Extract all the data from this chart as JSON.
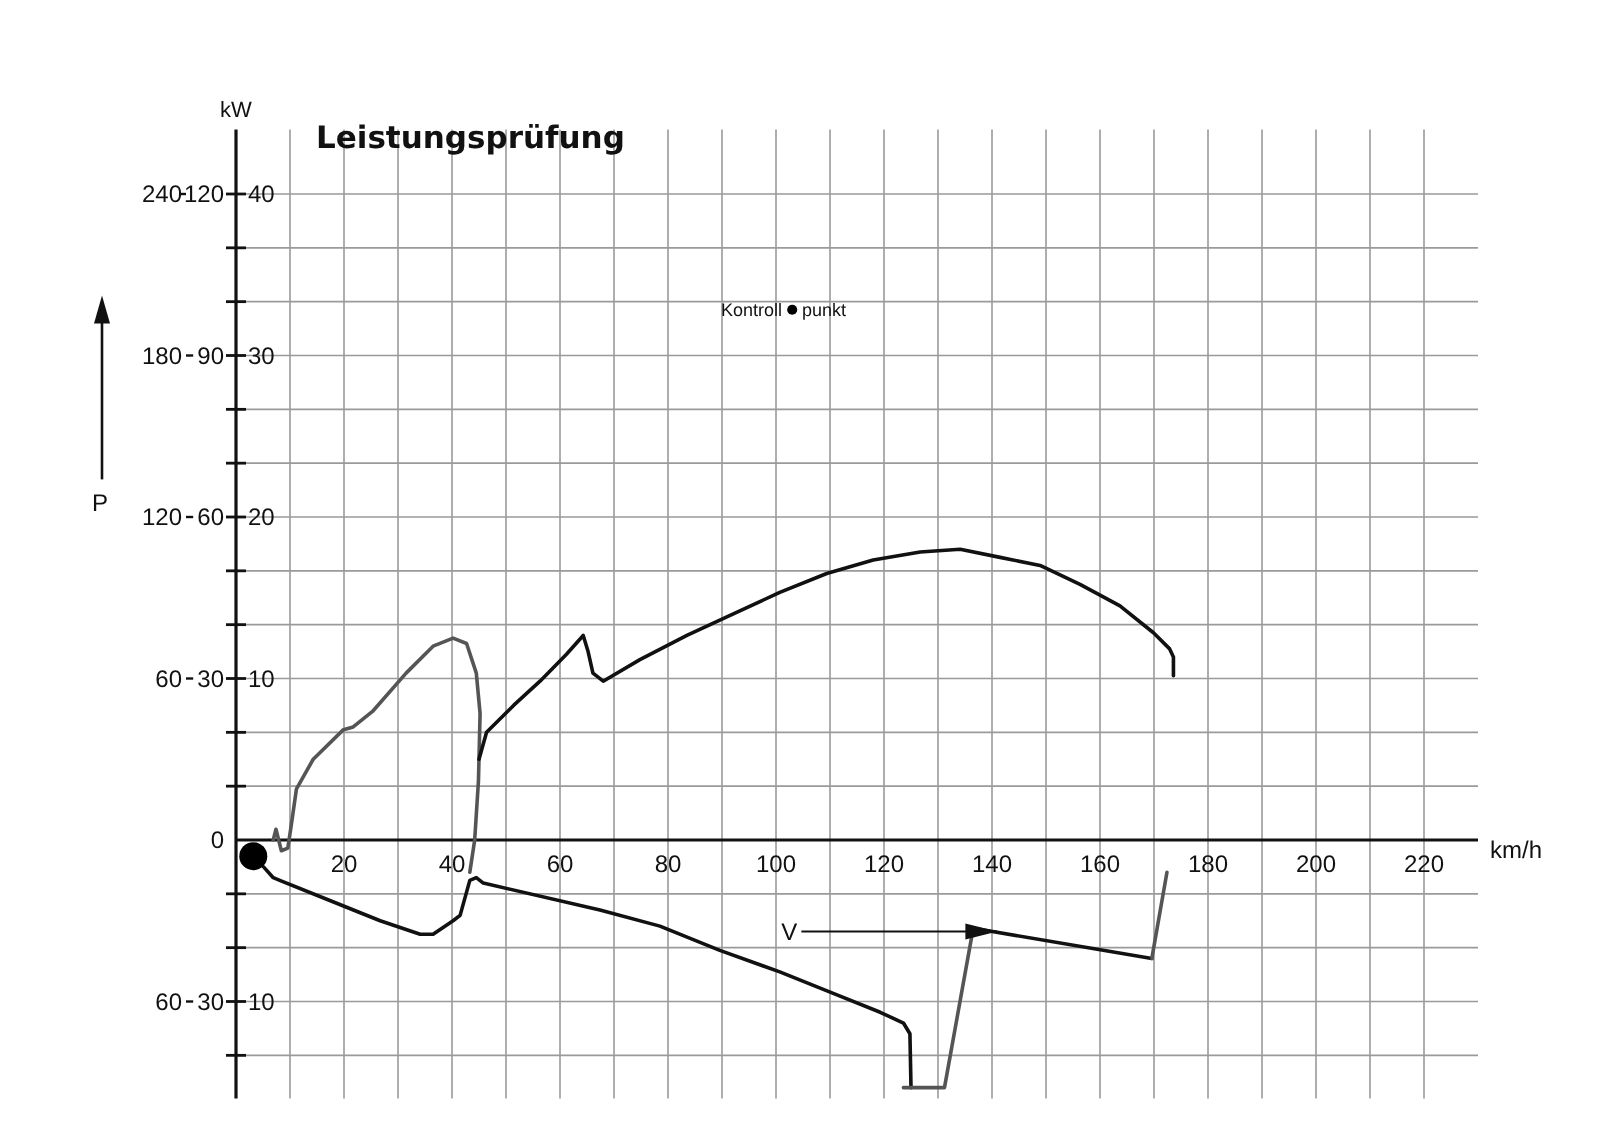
{
  "chart_data": {
    "type": "line",
    "title": "Leistungsprüfung",
    "xlabel": "km/h",
    "ylabel": "P",
    "annotations": [
      "kW",
      "Kontroll",
      "punkt",
      {
        "text": "V",
        "x": 141,
        "y": -34
      }
    ],
    "xlim": [
      0,
      230
    ],
    "xticks": [
      {
        "value": 10,
        "label": null
      },
      20,
      {
        "value": 30,
        "label": null
      },
      40,
      {
        "value": 50,
        "label": null
      },
      60,
      {
        "value": 70,
        "label": null
      },
      80,
      {
        "value": 90,
        "label": null
      },
      100,
      {
        "value": 110,
        "label": null
      },
      120,
      {
        "value": 130,
        "label": null
      },
      140,
      {
        "value": 150,
        "label": null
      },
      160,
      {
        "value": 170,
        "label": null
      },
      180,
      {
        "value": 190,
        "label": null
      },
      200,
      {
        "value": 210,
        "label": null
      },
      220
    ],
    "ylim": [
      -96,
      264
    ],
    "yticks": [
      {
        "value": -80,
        "label": null
      },
      {
        "value": -60,
        "label": "60"
      },
      {
        "value": -40,
        "label": null
      },
      {
        "value": -20,
        "label": null
      },
      {
        "value": 20,
        "label": null
      },
      {
        "value": 40,
        "label": null
      },
      60,
      {
        "value": 80,
        "label": null
      },
      {
        "value": 100,
        "label": null
      },
      120,
      {
        "value": 140,
        "label": null
      },
      {
        "value": 160,
        "label": null
      },
      180,
      {
        "value": 200,
        "label": null
      },
      {
        "value": 220,
        "label": null
      },
      240
    ],
    "y2lim": [
      -48,
      132
    ],
    "y2ticks": [
      {
        "value": -30,
        "label": "30"
      },
      0,
      30,
      60,
      90,
      120
    ],
    "y3lim": [
      -16,
      44
    ],
    "y3ticks": [
      {
        "value": -10,
        "label": "10"
      },
      10,
      20,
      30,
      40
    ],
    "grid": true,
    "series": [
      {
        "color": "#555555",
        "x": [
          6.9,
          7.4,
          8.4,
          9.6,
          10.2,
          11.2,
          14.3,
          19.9,
          21.7,
          25.4,
          31.5,
          36.5,
          40.2,
          42.7,
          44.5,
          45.2,
          44.9,
          44.2,
          43.3
        ],
        "values": [
          0,
          4,
          -4,
          -3,
          5,
          19,
          30,
          41,
          42,
          48,
          62,
          72,
          75,
          73,
          62,
          47,
          22,
          0,
          -12
        ]
      },
      {
        "color": "#111111",
        "x": [
          45.0,
          46.4,
          51.4,
          56.3,
          61.2,
          64.3,
          65.2,
          66.1,
          68.0,
          74.8,
          83.5,
          92.1,
          100.7,
          109.4,
          118.0,
          126.7,
          134.1,
          141.5,
          148.9,
          156.3,
          163.7,
          169.9,
          172.9,
          173.6,
          173.6
        ],
        "values": [
          30,
          40,
          50,
          59,
          69,
          76,
          70,
          62,
          59,
          67,
          76,
          84,
          92,
          99,
          104,
          107,
          108,
          105,
          102,
          95,
          87,
          77,
          71,
          68,
          61
        ]
      },
      {
        "color": "#111111",
        "x": [
          5.1,
          6.9,
          8.1,
          16.8,
          26.7,
          34.1,
          36.5,
          40.2,
          41.5,
          43.3,
          44.5,
          45.8,
          67.4,
          78.5,
          89.6,
          100.7,
          110.6,
          119.3,
          123.6,
          124.8,
          125.0
        ],
        "values": [
          -10,
          -14,
          -15,
          -22,
          -30,
          -35,
          -35,
          -30,
          -28,
          -15,
          -14,
          -16,
          -26,
          -32,
          -41,
          -49,
          -57,
          -64,
          -68,
          -72,
          -92
        ]
      },
      {
        "color": "#555555",
        "x": [
          123.6,
          131.2,
          136.5
        ],
        "values": [
          -92,
          -92,
          -33
        ]
      },
      {
        "color": "#111111",
        "x": [
          137.1,
          169.6
        ],
        "values": [
          -33,
          -44
        ]
      },
      {
        "color": "#555555",
        "x": [
          169.6,
          172.4
        ],
        "values": [
          -44,
          -12
        ]
      },
      {
        "type": "bubble",
        "color": "#000000",
        "x": [
          3.2,
          103
        ],
        "values": [
          -6,
          197
        ],
        "sizes": [
          1,
          0.13
        ]
      }
    ]
  }
}
